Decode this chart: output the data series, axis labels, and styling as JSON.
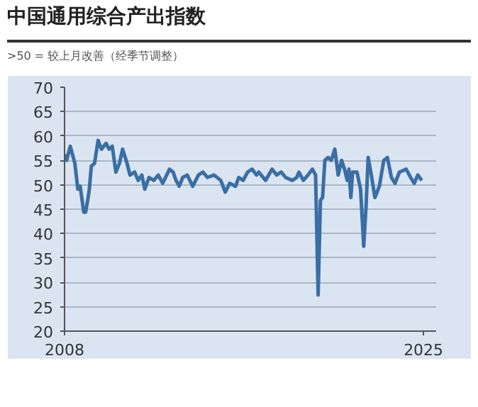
{
  "chart_data": {
    "type": "line",
    "title": "中国通用综合产出指数",
    "subtitle": ">50 = 较上月改善（经季节调整）",
    "x": [
      2008.0,
      2008.1,
      2008.27,
      2008.49,
      2008.63,
      2008.74,
      2008.91,
      2009.0,
      2009.16,
      2009.27,
      2009.42,
      2009.59,
      2009.75,
      2009.97,
      2010.11,
      2010.26,
      2010.43,
      2010.6,
      2010.75,
      2010.96,
      2011.1,
      2011.32,
      2011.49,
      2011.66,
      2011.8,
      2012.0,
      2012.23,
      2012.44,
      2012.65,
      2012.97,
      2013.14,
      2013.28,
      2013.43,
      2013.6,
      2013.81,
      2014.07,
      2014.34,
      2014.55,
      2014.77,
      2015.08,
      2015.4,
      2015.61,
      2015.82,
      2016.1,
      2016.25,
      2016.46,
      2016.67,
      2016.88,
      2017.09,
      2017.2,
      2017.52,
      2017.83,
      2018.04,
      2018.26,
      2018.47,
      2018.79,
      2019.0,
      2019.1,
      2019.31,
      2019.53,
      2019.74,
      2019.89,
      2020.01,
      2020.12,
      2020.22,
      2020.33,
      2020.48,
      2020.63,
      2020.8,
      2020.96,
      2021.12,
      2021.26,
      2021.39,
      2021.47,
      2021.56,
      2021.64,
      2021.85,
      2022.02,
      2022.17,
      2022.28,
      2022.38,
      2022.53,
      2022.7,
      2022.91,
      2023.12,
      2023.29,
      2023.48,
      2023.65,
      2023.86,
      2024.18,
      2024.39,
      2024.56,
      2024.73,
      2024.92
    ],
    "series": [
      {
        "color": "#3a6ea5",
        "values": [
          56.2,
          55,
          57.9,
          54.4,
          49.1,
          49.7,
          44.4,
          44.4,
          48.5,
          53.8,
          54.4,
          59.1,
          57.3,
          58.5,
          57.3,
          57.9,
          52.6,
          54.4,
          57.3,
          54.4,
          52.0,
          52.6,
          50.9,
          52.0,
          49.1,
          51.5,
          50.9,
          52.0,
          50.3,
          53.2,
          52.6,
          50.9,
          49.7,
          51.5,
          52.0,
          49.7,
          52.0,
          52.6,
          51.5,
          52.0,
          50.9,
          48.5,
          50.3,
          49.7,
          51.5,
          50.9,
          52.6,
          53.2,
          52.0,
          52.6,
          50.9,
          53.2,
          52.0,
          52.6,
          51.5,
          50.9,
          51.5,
          52.6,
          50.9,
          52.0,
          53.2,
          52.0,
          27.4,
          46.8,
          47.4,
          55,
          55.6,
          55,
          57.3,
          52,
          55,
          53.2,
          50.9,
          53.2,
          47.4,
          52.6,
          52.6,
          49.1,
          37.4,
          45.6,
          55.6,
          52,
          47.4,
          49.7,
          55,
          55.6,
          51.5,
          50.3,
          52.6,
          53.2,
          51.5,
          50.3,
          52,
          50.9
        ]
      }
    ],
    "xlim": [
      2008,
      2025.6
    ],
    "xticks": [
      2008,
      2025
    ],
    "ylim": [
      20,
      70
    ],
    "yticks": [
      20,
      25,
      30,
      35,
      40,
      45,
      50,
      55,
      60,
      65,
      70
    ],
    "grid": "y",
    "marker": "none",
    "line_style": "solid"
  }
}
